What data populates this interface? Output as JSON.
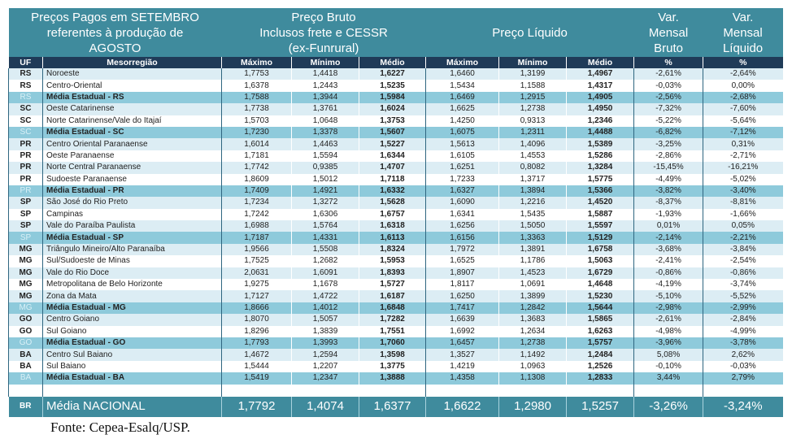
{
  "header": {
    "title": [
      "Preços Pagos em SETEMBRO",
      "referentes à produção de",
      "AGOSTO"
    ],
    "bruto": [
      "Preço Bruto",
      "Inclusos frete e CESSR",
      "(ex-Funrural)"
    ],
    "liquido": "Preço Líquido",
    "var_bruto": [
      "Var.",
      "Mensal",
      "Bruto"
    ],
    "var_liquido": [
      "Var.",
      "Mensal",
      "Líquido"
    ]
  },
  "columns": [
    "UF",
    "Mesorregião",
    "Máximo",
    "Mínimo",
    "Médio",
    "Máximo",
    "Mínimo",
    "Médio",
    "%",
    "%"
  ],
  "colors": {
    "header": "#3f8b9d",
    "column_header": "#1f3b58",
    "stripe": "#dcedf4",
    "state_average": "#8ecadb"
  },
  "rows": [
    {
      "uf": "RS",
      "region": "Noroeste",
      "v": [
        "1,7753",
        "1,4418",
        "1,6227",
        "1,6460",
        "1,3199",
        "1,4967",
        "-2,61%",
        "-2,64%"
      ]
    },
    {
      "uf": "RS",
      "region": "Centro-Oriental",
      "v": [
        "1,6378",
        "1,2443",
        "1,5235",
        "1,5434",
        "1,1588",
        "1,4317",
        "-0,03%",
        "0,00%"
      ]
    },
    {
      "uf": "RS",
      "region": "Média Estadual - RS",
      "avg": true,
      "v": [
        "1,7588",
        "1,3944",
        "1,5984",
        "1,6469",
        "1,2915",
        "1,4905",
        "-2,56%",
        "-2,68%"
      ]
    },
    {
      "uf": "SC",
      "region": "Oeste Catarinense",
      "v": [
        "1,7738",
        "1,3761",
        "1,6024",
        "1,6625",
        "1,2738",
        "1,4950",
        "-7,32%",
        "-7,60%"
      ]
    },
    {
      "uf": "SC",
      "region": "Norte Catarinense/Vale do Itajaí",
      "v": [
        "1,5703",
        "1,0648",
        "1,3753",
        "1,4250",
        "0,9313",
        "1,2346",
        "-5,22%",
        "-5,64%"
      ]
    },
    {
      "uf": "SC",
      "region": "Média Estadual - SC",
      "avg": true,
      "v": [
        "1,7230",
        "1,3378",
        "1,5607",
        "1,6075",
        "1,2311",
        "1,4488",
        "-6,82%",
        "-7,12%"
      ]
    },
    {
      "uf": "PR",
      "region": "Centro Oriental Paranaense",
      "v": [
        "1,6014",
        "1,4463",
        "1,5227",
        "1,5613",
        "1,4096",
        "1,5389",
        "-3,25%",
        "0,31%"
      ]
    },
    {
      "uf": "PR",
      "region": "Oeste Paranaense",
      "v": [
        "1,7181",
        "1,5594",
        "1,6344",
        "1,6105",
        "1,4553",
        "1,5286",
        "-2,86%",
        "-2,71%"
      ]
    },
    {
      "uf": "PR",
      "region": "Norte Central Paranaense",
      "v": [
        "1,7742",
        "0,9385",
        "1,4707",
        "1,6251",
        "0,8082",
        "1,3284",
        "-15,45%",
        "-16,21%"
      ]
    },
    {
      "uf": "PR",
      "region": "Sudoeste Paranaense",
      "v": [
        "1,8609",
        "1,5012",
        "1,7118",
        "1,7233",
        "1,3717",
        "1,5775",
        "-4,49%",
        "-5,02%"
      ]
    },
    {
      "uf": "PR",
      "region": "Média Estadual - PR",
      "avg": true,
      "v": [
        "1,7409",
        "1,4921",
        "1,6332",
        "1,6327",
        "1,3894",
        "1,5366",
        "-3,82%",
        "-3,40%"
      ]
    },
    {
      "uf": "SP",
      "region": "São José do Rio Preto",
      "v": [
        "1,7234",
        "1,3272",
        "1,5628",
        "1,6090",
        "1,2216",
        "1,4520",
        "-8,37%",
        "-8,81%"
      ]
    },
    {
      "uf": "SP",
      "region": "Campinas",
      "v": [
        "1,7242",
        "1,6306",
        "1,6757",
        "1,6341",
        "1,5435",
        "1,5887",
        "-1,93%",
        "-1,66%"
      ]
    },
    {
      "uf": "SP",
      "region": "Vale do Paraíba Paulista",
      "v": [
        "1,6988",
        "1,5764",
        "1,6318",
        "1,6256",
        "1,5050",
        "1,5597",
        "0,01%",
        "0,05%"
      ]
    },
    {
      "uf": "SP",
      "region": "Média Estadual - SP",
      "avg": true,
      "v": [
        "1,7187",
        "1,4331",
        "1,6113",
        "1,6156",
        "1,3363",
        "1,5129",
        "-2,14%",
        "-2,21%"
      ]
    },
    {
      "uf": "MG",
      "region": "Triângulo Mineiro/Alto Paranaíba",
      "v": [
        "1,9566",
        "1,5508",
        "1,8324",
        "1,7972",
        "1,3891",
        "1,6758",
        "-3,68%",
        "-3,84%"
      ]
    },
    {
      "uf": "MG",
      "region": "Sul/Sudoeste de Minas",
      "v": [
        "1,7525",
        "1,2682",
        "1,5953",
        "1,6525",
        "1,1786",
        "1,5063",
        "-2,41%",
        "-2,54%"
      ]
    },
    {
      "uf": "MG",
      "region": "Vale do Rio Doce",
      "v": [
        "2,0631",
        "1,6091",
        "1,8393",
        "1,8907",
        "1,4523",
        "1,6729",
        "-0,86%",
        "-0,86%"
      ]
    },
    {
      "uf": "MG",
      "region": "Metropolitana de Belo Horizonte",
      "v": [
        "1,9275",
        "1,1678",
        "1,5727",
        "1,8117",
        "1,0691",
        "1,4648",
        "-4,19%",
        "-3,74%"
      ]
    },
    {
      "uf": "MG",
      "region": "Zona da Mata",
      "v": [
        "1,7127",
        "1,4722",
        "1,6187",
        "1,6250",
        "1,3899",
        "1,5230",
        "-5,10%",
        "-5,52%"
      ]
    },
    {
      "uf": "MG",
      "region": "Média Estadual - MG",
      "avg": true,
      "v": [
        "1,8666",
        "1,4012",
        "1,6848",
        "1,7417",
        "1,2842",
        "1,5644",
        "-2,98%",
        "-2,99%"
      ]
    },
    {
      "uf": "GO",
      "region": "Centro Goiano",
      "v": [
        "1,8070",
        "1,5057",
        "1,7282",
        "1,6639",
        "1,3683",
        "1,5865",
        "-2,61%",
        "-2,84%"
      ]
    },
    {
      "uf": "GO",
      "region": "Sul Goiano",
      "v": [
        "1,8296",
        "1,3839",
        "1,7551",
        "1,6992",
        "1,2634",
        "1,6263",
        "-4,98%",
        "-4,99%"
      ]
    },
    {
      "uf": "GO",
      "region": "Média Estadual - GO",
      "avg": true,
      "v": [
        "1,7793",
        "1,3993",
        "1,7060",
        "1,6457",
        "1,2738",
        "1,5757",
        "-3,96%",
        "-3,78%"
      ]
    },
    {
      "uf": "BA",
      "region": "Centro Sul Baiano",
      "v": [
        "1,4672",
        "1,2594",
        "1,3598",
        "1,3527",
        "1,1492",
        "1,2484",
        "5,08%",
        "2,62%"
      ]
    },
    {
      "uf": "BA",
      "region": "Sul Baiano",
      "v": [
        "1,5444",
        "1,2207",
        "1,3775",
        "1,4219",
        "1,0963",
        "1,2526",
        "-0,10%",
        "-0,03%"
      ]
    },
    {
      "uf": "BA",
      "region": "Média Estadual - BA",
      "avg": true,
      "v": [
        "1,5419",
        "1,2347",
        "1,3888",
        "1,4358",
        "1,1308",
        "1,2833",
        "3,44%",
        "2,79%"
      ]
    }
  ],
  "national": {
    "uf": "BR",
    "region": "Média NACIONAL",
    "v": [
      "1,7792",
      "1,4074",
      "1,6377",
      "1,6622",
      "1,2980",
      "1,5257",
      "-3,26%",
      "-3,24%"
    ]
  },
  "source": "Fonte: Cepea-Esalq/USP."
}
